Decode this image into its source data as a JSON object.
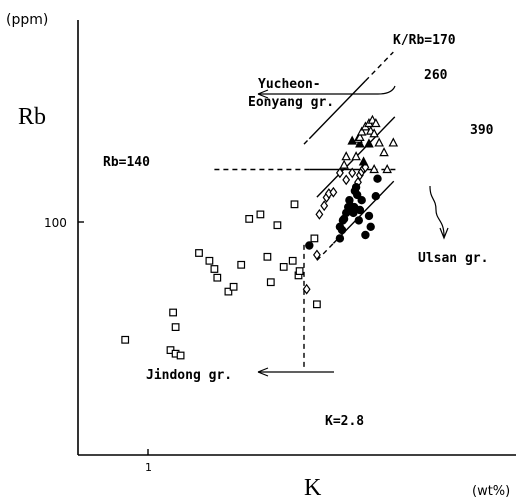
{
  "chart_data": {
    "type": "scatter",
    "title": "",
    "y_unit": "(ppm)",
    "y_label": "Rb",
    "x_label": "K",
    "x_unit": "(wt%)",
    "x_scale": "log",
    "y_scale": "log",
    "xlim": [
      0.82,
      5.2
    ],
    "ylim": [
      38,
      270
    ],
    "x_tick_labels": [
      {
        "value": 1,
        "label": "1"
      }
    ],
    "y_tick_labels": [
      {
        "value": 100,
        "label": "100"
      }
    ],
    "grid": false,
    "legend": "none",
    "series": [
      {
        "marker": "square",
        "points": [
          [
            0.86,
            47
          ],
          [
            1.18,
            56
          ],
          [
            1.2,
            51
          ],
          [
            1.16,
            44
          ],
          [
            1.2,
            43
          ],
          [
            1.24,
            42.5
          ],
          [
            1.4,
            82
          ],
          [
            1.5,
            78
          ],
          [
            1.55,
            74
          ],
          [
            1.58,
            70
          ],
          [
            1.7,
            64
          ],
          [
            1.76,
            66
          ],
          [
            1.85,
            76
          ],
          [
            1.95,
            102
          ],
          [
            2.1,
            105
          ],
          [
            2.2,
            80
          ],
          [
            2.25,
            68
          ],
          [
            2.35,
            98
          ],
          [
            2.45,
            75
          ],
          [
            2.6,
            78
          ],
          [
            2.63,
            112
          ],
          [
            2.7,
            71
          ],
          [
            2.72,
            73
          ],
          [
            3.0,
            90
          ],
          [
            3.05,
            59
          ]
        ]
      },
      {
        "marker": "diamond",
        "points": [
          [
            2.85,
            65
          ],
          [
            3.05,
            81
          ],
          [
            3.1,
            105
          ],
          [
            3.2,
            111
          ],
          [
            3.25,
            117
          ],
          [
            3.3,
            120
          ],
          [
            3.4,
            121
          ],
          [
            3.55,
            137
          ],
          [
            3.7,
            131
          ],
          [
            3.85,
            137
          ],
          [
            4.0,
            129
          ],
          [
            4.05,
            135
          ],
          [
            4.1,
            138
          ],
          [
            4.15,
            141
          ],
          [
            4.2,
            142
          ]
        ]
      },
      {
        "marker": "circle-filled",
        "points": [
          [
            2.9,
            86
          ],
          [
            3.55,
            90
          ],
          [
            3.55,
            97
          ],
          [
            3.6,
            95
          ],
          [
            3.62,
            101
          ],
          [
            3.65,
            102
          ],
          [
            3.7,
            106
          ],
          [
            3.75,
            110
          ],
          [
            3.78,
            115
          ],
          [
            3.8,
            111
          ],
          [
            3.85,
            108
          ],
          [
            3.88,
            106
          ],
          [
            3.9,
            110
          ],
          [
            3.92,
            122
          ],
          [
            3.95,
            125
          ],
          [
            3.98,
            119
          ],
          [
            4.02,
            101
          ],
          [
            4.05,
            108
          ],
          [
            4.1,
            115
          ],
          [
            4.2,
            92
          ],
          [
            4.3,
            104
          ],
          [
            4.35,
            97
          ],
          [
            4.5,
            118
          ],
          [
            4.55,
            132
          ]
        ]
      },
      {
        "marker": "triangle-filled",
        "points": [
          [
            3.85,
            168
          ],
          [
            4.05,
            165
          ],
          [
            4.15,
            147
          ],
          [
            4.3,
            165
          ]
        ]
      },
      {
        "marker": "triangle-open",
        "points": [
          [
            3.65,
            144
          ],
          [
            3.7,
            152
          ],
          [
            3.95,
            152
          ],
          [
            4.0,
            170
          ],
          [
            4.05,
            172
          ],
          [
            4.1,
            178
          ],
          [
            4.2,
            184
          ],
          [
            4.3,
            188
          ],
          [
            4.35,
            179
          ],
          [
            4.4,
            192
          ],
          [
            4.45,
            176
          ],
          [
            4.45,
            140
          ],
          [
            4.5,
            188
          ],
          [
            4.6,
            166
          ],
          [
            4.75,
            156
          ],
          [
            4.85,
            140
          ],
          [
            5.05,
            166
          ]
        ]
      }
    ],
    "reference_lines": [
      {
        "name": "kr170",
        "label": "K/Rb=170",
        "kind": "ratio",
        "ratio": 170,
        "x_range": [
          2.8,
          5.05
        ],
        "style": "solid-dashed",
        "solid_from": 2.9,
        "solid_to": 4.2
      },
      {
        "name": "kr260",
        "label": "260",
        "kind": "ratio",
        "ratio": 260,
        "x_range": [
          3.05,
          5.1
        ],
        "style": "solid"
      },
      {
        "name": "kr390",
        "label": "390",
        "kind": "ratio",
        "ratio": 390,
        "x_range": [
          3.05,
          5.1
        ],
        "style": "solid-dashed",
        "solid_from": 3.4,
        "solid_to": 4.95
      },
      {
        "name": "rb140",
        "label": "Rb=140",
        "kind": "horizontal",
        "y": 140,
        "x_range": [
          1.55,
          5.2
        ],
        "style": "dashed-solid",
        "solid_from": 2.9,
        "solid_to": 4.4
      },
      {
        "name": "k28",
        "label": "K=2.8",
        "kind": "vertical",
        "x": 2.8,
        "y_range": [
          39.5,
          88
        ],
        "style": "dashed"
      }
    ],
    "annotations": [
      {
        "name": "yucheon",
        "lines": [
          "Yucheon-",
          "Eonyang gr."
        ]
      },
      {
        "name": "jindong",
        "lines": [
          "Jindong gr."
        ]
      },
      {
        "name": "ulsan",
        "lines": [
          "Ulsan gr."
        ]
      }
    ]
  }
}
